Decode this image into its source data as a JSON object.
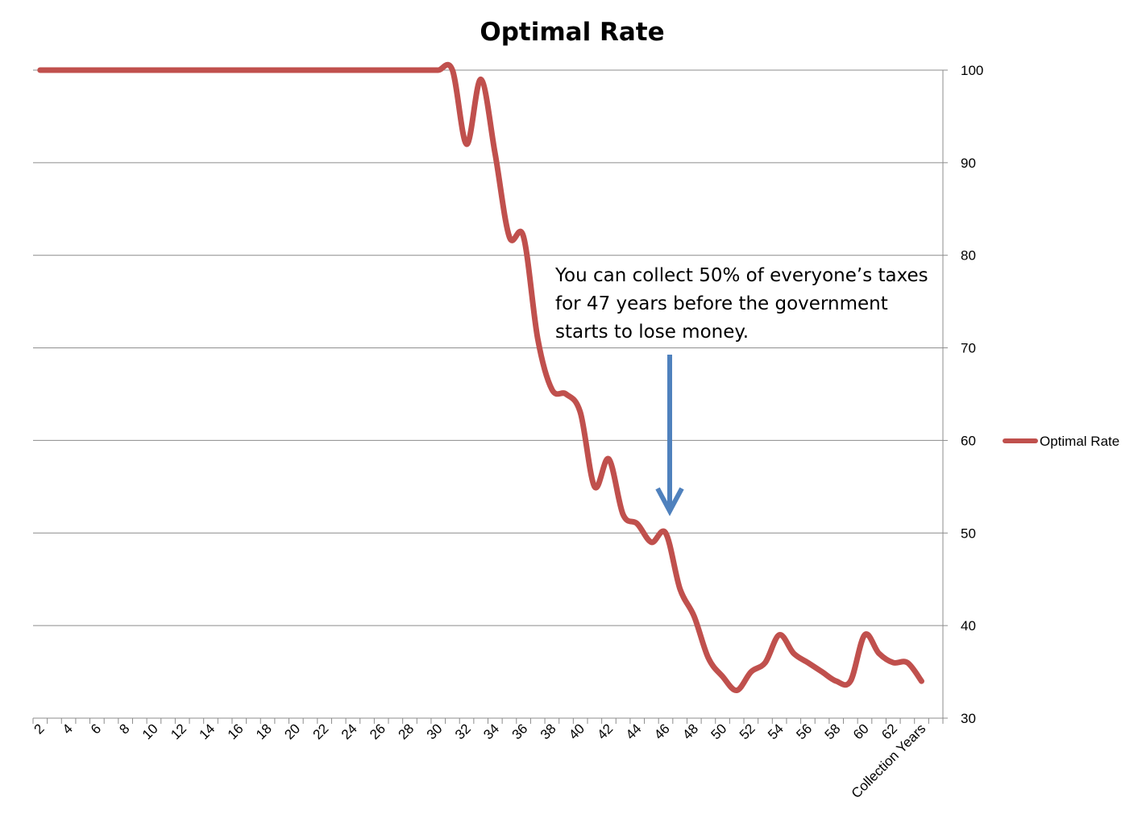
{
  "chart_data": {
    "type": "line",
    "title": "Optimal Rate",
    "xlabel": "Collection Years",
    "ylabel": "",
    "ylim": [
      30,
      100
    ],
    "yticks": [
      30,
      40,
      50,
      60,
      70,
      80,
      90,
      100
    ],
    "y_axis_side": "right",
    "grid": true,
    "legend_position": "right",
    "x_tick_labels": [
      "2",
      "4",
      "6",
      "8",
      "10",
      "12",
      "14",
      "16",
      "18",
      "20",
      "22",
      "24",
      "26",
      "28",
      "30",
      "32",
      "34",
      "36",
      "38",
      "40",
      "42",
      "44",
      "46",
      "48",
      "50",
      "52",
      "54",
      "56",
      "58",
      "60",
      "62",
      "Collection Years"
    ],
    "x": [
      2,
      3,
      4,
      5,
      6,
      7,
      8,
      9,
      10,
      11,
      12,
      13,
      14,
      15,
      16,
      17,
      18,
      19,
      20,
      21,
      22,
      23,
      24,
      25,
      26,
      27,
      28,
      29,
      30,
      31,
      32,
      33,
      34,
      35,
      36,
      37,
      38,
      39,
      40,
      41,
      42,
      43,
      44,
      45,
      46,
      47,
      48,
      49,
      50,
      51,
      52,
      53,
      54,
      55,
      56,
      57,
      58,
      59,
      60,
      61,
      62,
      63,
      64
    ],
    "series": [
      {
        "name": "Optimal Rate",
        "color": "#c0504d",
        "values": [
          100,
          100,
          100,
          100,
          100,
          100,
          100,
          100,
          100,
          100,
          100,
          100,
          100,
          100,
          100,
          100,
          100,
          100,
          100,
          100,
          100,
          100,
          100,
          100,
          100,
          100,
          100,
          100,
          100,
          100,
          92,
          99,
          91,
          82,
          82,
          71,
          65.5,
          65,
          63,
          55,
          58,
          52,
          51,
          49,
          50,
          44,
          41,
          36.5,
          34.5,
          33,
          35,
          36,
          39,
          37,
          36,
          35,
          34,
          34,
          39,
          37,
          36,
          36,
          34
        ]
      }
    ],
    "annotation": {
      "lines": [
        "You can collect 50% of everyone’s taxes",
        "for 47 years before the government",
        "starts to lose money."
      ],
      "arrow_color": "#4f81bd",
      "arrow_points_to_x": 46
    }
  }
}
